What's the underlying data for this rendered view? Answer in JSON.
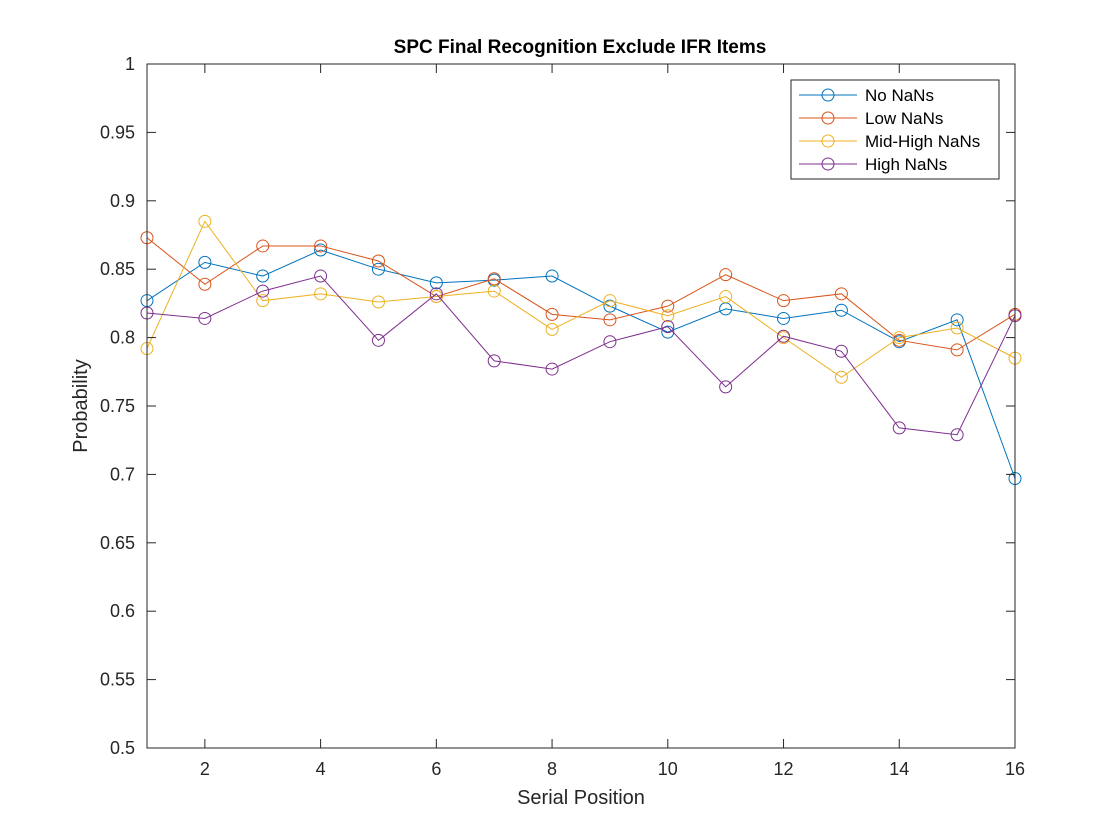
{
  "chart_data": {
    "type": "line",
    "title": "SPC Final Recognition Exclude IFR Items",
    "xlabel": "Serial Position",
    "ylabel": "Probability",
    "xlim": [
      1,
      16
    ],
    "ylim": [
      0.5,
      1
    ],
    "xticks": [
      2,
      4,
      6,
      8,
      10,
      12,
      14,
      16
    ],
    "yticks": [
      0.5,
      0.55,
      0.6,
      0.65,
      0.7,
      0.75,
      0.8,
      0.85,
      0.9,
      0.95,
      1
    ],
    "ytick_labels": [
      "0.5",
      "0.55",
      "0.6",
      "0.65",
      "0.7",
      "0.75",
      "0.8",
      "0.85",
      "0.9",
      "0.95",
      "1"
    ],
    "grid": false,
    "legend_position": "top-right",
    "marker": "circle",
    "x": [
      1,
      2,
      3,
      4,
      5,
      6,
      7,
      8,
      9,
      10,
      11,
      12,
      13,
      14,
      15,
      16
    ],
    "series": [
      {
        "name": "No NaNs",
        "color": "#0072BD",
        "values": [
          0.827,
          0.855,
          0.845,
          0.864,
          0.85,
          0.84,
          0.842,
          0.845,
          0.823,
          0.804,
          0.821,
          0.814,
          0.82,
          0.797,
          0.813,
          0.697
        ]
      },
      {
        "name": "Low NaNs",
        "color": "#D95319",
        "values": [
          0.873,
          0.839,
          0.867,
          0.867,
          0.856,
          0.83,
          0.843,
          0.817,
          0.813,
          0.823,
          0.846,
          0.827,
          0.832,
          0.798,
          0.791,
          0.817
        ]
      },
      {
        "name": "Mid-High NaNs",
        "color": "#EDB120",
        "values": [
          0.792,
          0.885,
          0.827,
          0.832,
          0.826,
          0.83,
          0.834,
          0.806,
          0.827,
          0.816,
          0.83,
          0.8,
          0.771,
          0.8,
          0.807,
          0.785
        ]
      },
      {
        "name": "High NaNs",
        "color": "#7E2F8E",
        "values": [
          0.818,
          0.814,
          0.834,
          0.845,
          0.798,
          0.832,
          0.783,
          0.777,
          0.797,
          0.808,
          0.764,
          0.801,
          0.79,
          0.734,
          0.729,
          0.816
        ]
      }
    ]
  }
}
